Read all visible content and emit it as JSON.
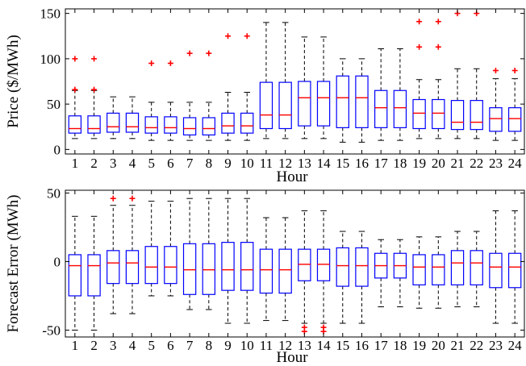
{
  "colors": {
    "box": "#0000ff",
    "median": "#ff0000",
    "outlier": "#ff0000",
    "whisker": "#000000"
  },
  "chart_data": [
    {
      "type": "boxplot",
      "title": "",
      "xlabel": "Hour",
      "ylabel": "Price ($/MWh)",
      "categories": [
        "1",
        "2",
        "3",
        "4",
        "5",
        "6",
        "7",
        "8",
        "9",
        "10",
        "11",
        "12",
        "13",
        "14",
        "15",
        "16",
        "17",
        "18",
        "19",
        "20",
        "21",
        "22",
        "23",
        "24"
      ],
      "ylim": [
        -5,
        155
      ],
      "yticks": [
        0,
        50,
        100,
        150
      ],
      "grid": false,
      "boxes": [
        {
          "lw": 12,
          "q1": 18,
          "med": 23,
          "q3": 37,
          "uw": 65,
          "outliers": [
            66,
            100
          ]
        },
        {
          "lw": 12,
          "q1": 18,
          "med": 23,
          "q3": 37,
          "uw": 65,
          "outliers": [
            66,
            100
          ]
        },
        {
          "lw": 12,
          "q1": 19,
          "med": 25,
          "q3": 40,
          "uw": 58,
          "outliers": []
        },
        {
          "lw": 12,
          "q1": 19,
          "med": 25,
          "q3": 40,
          "uw": 58,
          "outliers": []
        },
        {
          "lw": 10,
          "q1": 18,
          "med": 24,
          "q3": 36,
          "uw": 52,
          "outliers": [
            95
          ]
        },
        {
          "lw": 10,
          "q1": 18,
          "med": 24,
          "q3": 36,
          "uw": 52,
          "outliers": [
            95
          ]
        },
        {
          "lw": 10,
          "q1": 16,
          "med": 23,
          "q3": 35,
          "uw": 52,
          "outliers": [
            106
          ]
        },
        {
          "lw": 10,
          "q1": 16,
          "med": 23,
          "q3": 35,
          "uw": 52,
          "outliers": [
            106
          ]
        },
        {
          "lw": 10,
          "q1": 18,
          "med": 26,
          "q3": 40,
          "uw": 63,
          "outliers": [
            125
          ]
        },
        {
          "lw": 10,
          "q1": 18,
          "med": 26,
          "q3": 40,
          "uw": 63,
          "outliers": [
            125
          ]
        },
        {
          "lw": 12,
          "q1": 23,
          "med": 38,
          "q3": 74,
          "uw": 140,
          "outliers": []
        },
        {
          "lw": 12,
          "q1": 23,
          "med": 38,
          "q3": 74,
          "uw": 140,
          "outliers": []
        },
        {
          "lw": 12,
          "q1": 26,
          "med": 57,
          "q3": 75,
          "uw": 124,
          "outliers": []
        },
        {
          "lw": 12,
          "q1": 26,
          "med": 57,
          "q3": 75,
          "uw": 124,
          "outliers": []
        },
        {
          "lw": 8,
          "q1": 24,
          "med": 57,
          "q3": 81,
          "uw": 100,
          "outliers": []
        },
        {
          "lw": 8,
          "q1": 24,
          "med": 57,
          "q3": 81,
          "uw": 100,
          "outliers": []
        },
        {
          "lw": 10,
          "q1": 24,
          "med": 46,
          "q3": 65,
          "uw": 111,
          "outliers": []
        },
        {
          "lw": 10,
          "q1": 24,
          "med": 46,
          "q3": 65,
          "uw": 111,
          "outliers": []
        },
        {
          "lw": 12,
          "q1": 23,
          "med": 40,
          "q3": 55,
          "uw": 77,
          "outliers": [
            113,
            141
          ]
        },
        {
          "lw": 12,
          "q1": 23,
          "med": 40,
          "q3": 55,
          "uw": 77,
          "outliers": [
            113,
            141
          ]
        },
        {
          "lw": 12,
          "q1": 22,
          "med": 30,
          "q3": 54,
          "uw": 89,
          "outliers": [
            150
          ]
        },
        {
          "lw": 12,
          "q1": 22,
          "med": 30,
          "q3": 54,
          "uw": 89,
          "outliers": [
            150
          ]
        },
        {
          "lw": 10,
          "q1": 20,
          "med": 34,
          "q3": 46,
          "uw": 78,
          "outliers": [
            87
          ]
        },
        {
          "lw": 10,
          "q1": 20,
          "med": 34,
          "q3": 46,
          "uw": 78,
          "outliers": [
            87
          ]
        }
      ]
    },
    {
      "type": "boxplot",
      "title": "",
      "xlabel": "Hour",
      "ylabel": "Forecast Error (MWh)",
      "categories": [
        "1",
        "2",
        "3",
        "4",
        "5",
        "6",
        "7",
        "8",
        "9",
        "10",
        "11",
        "12",
        "13",
        "14",
        "15",
        "16",
        "17",
        "18",
        "19",
        "20",
        "21",
        "22",
        "23",
        "24"
      ],
      "ylim": [
        -55,
        52
      ],
      "yticks": [
        -50,
        0,
        50
      ],
      "grid": false,
      "boxes": [
        {
          "lw": -50,
          "q1": -25,
          "med": -3,
          "q3": 5,
          "uw": 33,
          "outliers": []
        },
        {
          "lw": -50,
          "q1": -25,
          "med": -3,
          "q3": 5,
          "uw": 33,
          "outliers": []
        },
        {
          "lw": -38,
          "q1": -16,
          "med": -1,
          "q3": 8,
          "uw": 41,
          "outliers": [
            46
          ]
        },
        {
          "lw": -38,
          "q1": -16,
          "med": -1,
          "q3": 8,
          "uw": 41,
          "outliers": [
            46
          ]
        },
        {
          "lw": -25,
          "q1": -16,
          "med": -4,
          "q3": 11,
          "uw": 44,
          "outliers": []
        },
        {
          "lw": -25,
          "q1": -16,
          "med": -4,
          "q3": 11,
          "uw": 44,
          "outliers": []
        },
        {
          "lw": -35,
          "q1": -24,
          "med": -6,
          "q3": 13,
          "uw": 46,
          "outliers": []
        },
        {
          "lw": -35,
          "q1": -24,
          "med": -6,
          "q3": 13,
          "uw": 46,
          "outliers": []
        },
        {
          "lw": -45,
          "q1": -21,
          "med": -6,
          "q3": 14,
          "uw": 46,
          "outliers": []
        },
        {
          "lw": -45,
          "q1": -21,
          "med": -6,
          "q3": 14,
          "uw": 46,
          "outliers": []
        },
        {
          "lw": -43,
          "q1": -23,
          "med": -6,
          "q3": 9,
          "uw": 32,
          "outliers": []
        },
        {
          "lw": -43,
          "q1": -23,
          "med": -6,
          "q3": 9,
          "uw": 32,
          "outliers": []
        },
        {
          "lw": -45,
          "q1": -14,
          "med": -2,
          "q3": 9,
          "uw": 37,
          "outliers": [
            -48,
            -51
          ]
        },
        {
          "lw": -45,
          "q1": -14,
          "med": -2,
          "q3": 9,
          "uw": 37,
          "outliers": [
            -48,
            -51
          ]
        },
        {
          "lw": -45,
          "q1": -18,
          "med": -3,
          "q3": 10,
          "uw": 22,
          "outliers": []
        },
        {
          "lw": -45,
          "q1": -18,
          "med": -3,
          "q3": 10,
          "uw": 22,
          "outliers": []
        },
        {
          "lw": -33,
          "q1": -12,
          "med": -3,
          "q3": 6,
          "uw": 16,
          "outliers": []
        },
        {
          "lw": -33,
          "q1": -12,
          "med": -3,
          "q3": 6,
          "uw": 16,
          "outliers": []
        },
        {
          "lw": -34,
          "q1": -17,
          "med": -4,
          "q3": 5,
          "uw": 18,
          "outliers": []
        },
        {
          "lw": -34,
          "q1": -17,
          "med": -4,
          "q3": 5,
          "uw": 18,
          "outliers": []
        },
        {
          "lw": -33,
          "q1": -17,
          "med": -1,
          "q3": 8,
          "uw": 22,
          "outliers": []
        },
        {
          "lw": -33,
          "q1": -17,
          "med": -1,
          "q3": 8,
          "uw": 22,
          "outliers": []
        },
        {
          "lw": -45,
          "q1": -19,
          "med": -4,
          "q3": 6,
          "uw": 37,
          "outliers": []
        },
        {
          "lw": -45,
          "q1": -19,
          "med": -4,
          "q3": 6,
          "uw": 37,
          "outliers": []
        }
      ]
    }
  ]
}
